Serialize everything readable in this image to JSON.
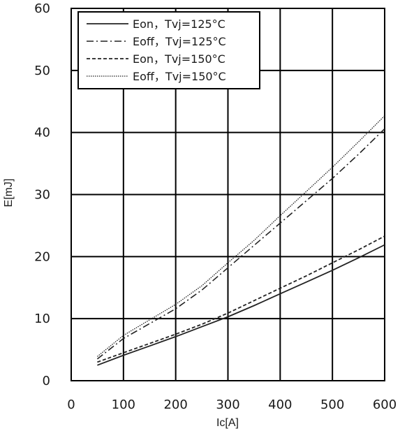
{
  "chart_data": {
    "type": "line",
    "xlabel": "Ic[A]",
    "ylabel": "E[mJ]",
    "xlim": [
      0,
      600
    ],
    "ylim": [
      0,
      60
    ],
    "xticks": [
      "0",
      "100",
      "200",
      "300",
      "400",
      "500",
      "600"
    ],
    "yticks": [
      "0",
      "10",
      "20",
      "30",
      "40",
      "50",
      "60"
    ],
    "grid": true,
    "legend_position": "top-left",
    "series": [
      {
        "name": "Eon，Tvj=125°C",
        "style": "solid",
        "x": [
          50,
          100,
          150,
          200,
          250,
          300,
          350,
          400,
          450,
          500,
          550,
          600
        ],
        "y": [
          2.5,
          4.1,
          5.6,
          7.1,
          8.7,
          10.3,
          12.1,
          14.0,
          15.9,
          17.8,
          19.8,
          21.9
        ]
      },
      {
        "name": "Eoff，Tvj=125°C",
        "style": "dashdot",
        "x": [
          50,
          100,
          150,
          200,
          250,
          300,
          350,
          400,
          450,
          500,
          550,
          600
        ],
        "y": [
          3.5,
          6.8,
          9.2,
          11.6,
          14.6,
          18.2,
          21.8,
          25.4,
          29.0,
          32.6,
          36.5,
          40.6
        ]
      },
      {
        "name": "Eon，Tvj=150°C",
        "style": "dashed",
        "x": [
          50,
          100,
          150,
          200,
          250,
          300,
          350,
          400,
          450,
          500,
          550,
          600
        ],
        "y": [
          3.0,
          4.5,
          6.0,
          7.5,
          9.1,
          10.9,
          12.9,
          14.9,
          16.9,
          19.0,
          21.1,
          23.3
        ]
      },
      {
        "name": "Eoff，Tvj=150°C",
        "style": "dotted",
        "x": [
          50,
          100,
          150,
          200,
          250,
          300,
          350,
          400,
          450,
          500,
          550,
          600
        ],
        "y": [
          3.9,
          7.3,
          9.8,
          12.3,
          15.3,
          19.0,
          22.6,
          26.6,
          30.5,
          34.4,
          38.5,
          42.7
        ]
      }
    ]
  }
}
